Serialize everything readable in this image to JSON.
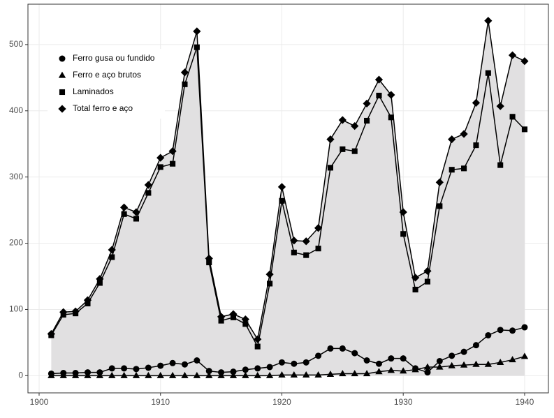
{
  "chart_data": {
    "type": "line",
    "x": [
      1901,
      1902,
      1903,
      1904,
      1905,
      1906,
      1907,
      1908,
      1909,
      1910,
      1911,
      1912,
      1913,
      1914,
      1915,
      1916,
      1917,
      1918,
      1919,
      1920,
      1921,
      1922,
      1923,
      1924,
      1925,
      1926,
      1927,
      1928,
      1929,
      1930,
      1931,
      1932,
      1933,
      1934,
      1935,
      1936,
      1937,
      1938,
      1939,
      1940
    ],
    "series": [
      {
        "name": "Ferro gusa ou fundido",
        "color": "#000000",
        "marker": "circle",
        "values": [
          3,
          4,
          4,
          5,
          5,
          11,
          11,
          10,
          12,
          15,
          19,
          17,
          23,
          7,
          5,
          6,
          9,
          11,
          13,
          20,
          18,
          20,
          30,
          41,
          41,
          34,
          23,
          18,
          26,
          26,
          11,
          5,
          22,
          30,
          36,
          46,
          61,
          69,
          68,
          73
        ]
      },
      {
        "name": "Ferro e aço brutos",
        "color": "#000000",
        "marker": "triangle",
        "values": [
          0,
          0,
          0,
          0,
          0,
          0,
          0,
          0,
          0,
          0,
          0,
          0,
          0,
          0,
          0,
          0,
          0,
          0,
          0,
          1,
          1,
          1,
          1,
          2,
          3,
          3,
          3,
          6,
          8,
          7,
          9,
          13,
          13,
          15,
          16,
          17,
          17,
          20,
          24,
          29
        ]
      },
      {
        "name": "Laminados",
        "color": "#000000",
        "marker": "square",
        "values": [
          61,
          92,
          94,
          109,
          140,
          179,
          244,
          237,
          276,
          315,
          320,
          440,
          496,
          171,
          83,
          88,
          78,
          44,
          139,
          264,
          186,
          182,
          192,
          314,
          342,
          339,
          385,
          423,
          390,
          214,
          130,
          142,
          256,
          311,
          313,
          348,
          457,
          318,
          391,
          372
        ]
      },
      {
        "name": "Total ferro e aço",
        "color": "#000000",
        "marker": "diamond",
        "area": true,
        "area_color": "#e1e0e1",
        "values": [
          63,
          96,
          97,
          114,
          146,
          190,
          254,
          247,
          288,
          329,
          339,
          458,
          520,
          177,
          89,
          93,
          85,
          55,
          153,
          285,
          204,
          203,
          223,
          357,
          386,
          377,
          411,
          447,
          424,
          247,
          148,
          158,
          292,
          357,
          365,
          412,
          536,
          407,
          484,
          475
        ]
      }
    ],
    "xlim": [
      1899.08,
      1941.96
    ],
    "xticks": [
      1900,
      1910,
      1920,
      1930,
      1940
    ],
    "ylim": [
      -26,
      561
    ],
    "yticks": [
      0,
      100,
      200,
      300,
      400,
      500
    ],
    "grid": true,
    "legend": "top-left"
  }
}
